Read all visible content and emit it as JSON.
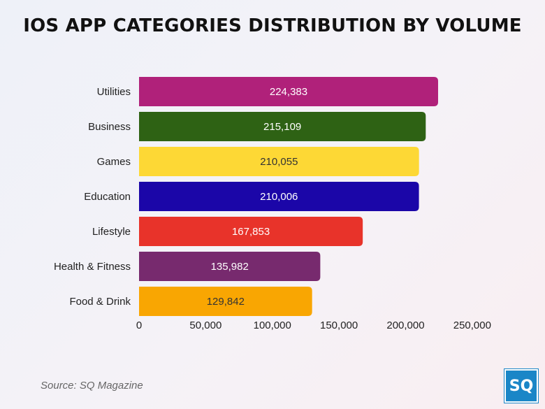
{
  "title": "IOS APP CATEGORIES DISTRIBUTION BY VOLUME",
  "source": "Source: SQ Magazine",
  "logo_text": "SQ",
  "chart_data": {
    "type": "bar",
    "orientation": "horizontal",
    "title": "IOS APP CATEGORIES DISTRIBUTION BY VOLUME",
    "categories": [
      "Utilities",
      "Business",
      "Games",
      "Education",
      "Lifestyle",
      "Health & Fitness",
      "Food & Drink"
    ],
    "values": [
      224383,
      215109,
      210055,
      210006,
      167853,
      135982,
      129842
    ],
    "value_labels": [
      "224,383",
      "215,109",
      "210,055",
      "210,006",
      "167,853",
      "135,982",
      "129,842"
    ],
    "colors": [
      "#b0217a",
      "#2e6214",
      "#fdd835",
      "#1b06a8",
      "#e8332a",
      "#772a6e",
      "#f9a602"
    ],
    "label_colors": [
      "#ffffff",
      "#ffffff",
      "#333333",
      "#ffffff",
      "#ffffff",
      "#ffffff",
      "#333333"
    ],
    "xlim": [
      0,
      250000
    ],
    "xticks": [
      0,
      50000,
      100000,
      150000,
      200000,
      250000
    ],
    "xtick_labels": [
      "0",
      "50,000",
      "100,000",
      "150,000",
      "200,000",
      "250,000"
    ],
    "grid": false,
    "legend": "none"
  }
}
